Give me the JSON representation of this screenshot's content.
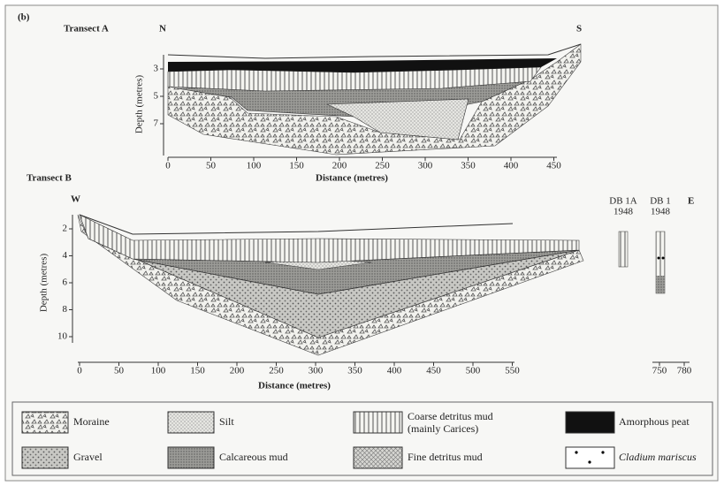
{
  "figure": {
    "panel": "(b)"
  },
  "transect_a": {
    "title": "Transect A",
    "left": "N",
    "right": "S",
    "y_label": "Depth (metres)",
    "y_ticks": [
      3,
      5,
      7
    ],
    "x_ticks": [
      0,
      50,
      100,
      150,
      200,
      250,
      300,
      350,
      400,
      450
    ],
    "x_label": "Distance (metres)"
  },
  "transect_b": {
    "title": "Transect B",
    "left": "W",
    "right": "E",
    "y_label": "Depth (metres)",
    "y_ticks": [
      2,
      4,
      6,
      8,
      10
    ],
    "x_ticks": [
      0,
      50,
      100,
      150,
      200,
      250,
      300,
      350,
      400,
      450,
      500,
      550
    ],
    "x_label": "Distance (metres)",
    "cores": [
      {
        "name": "DB 1A",
        "year": "1948"
      },
      {
        "name": "DB 1",
        "year": "1948"
      }
    ],
    "core_x_ticks": [
      750,
      780
    ]
  },
  "legend": [
    {
      "label": "Moraine"
    },
    {
      "label": "Silt"
    },
    {
      "label": "Coarse detritus mud",
      "note": "(mainly Carices)"
    },
    {
      "label": "Amorphous peat"
    },
    {
      "label": "Gravel"
    },
    {
      "label": "Calcareous mud"
    },
    {
      "label": "Fine detritus mud"
    },
    {
      "label": "Cladium mariscus"
    }
  ]
}
